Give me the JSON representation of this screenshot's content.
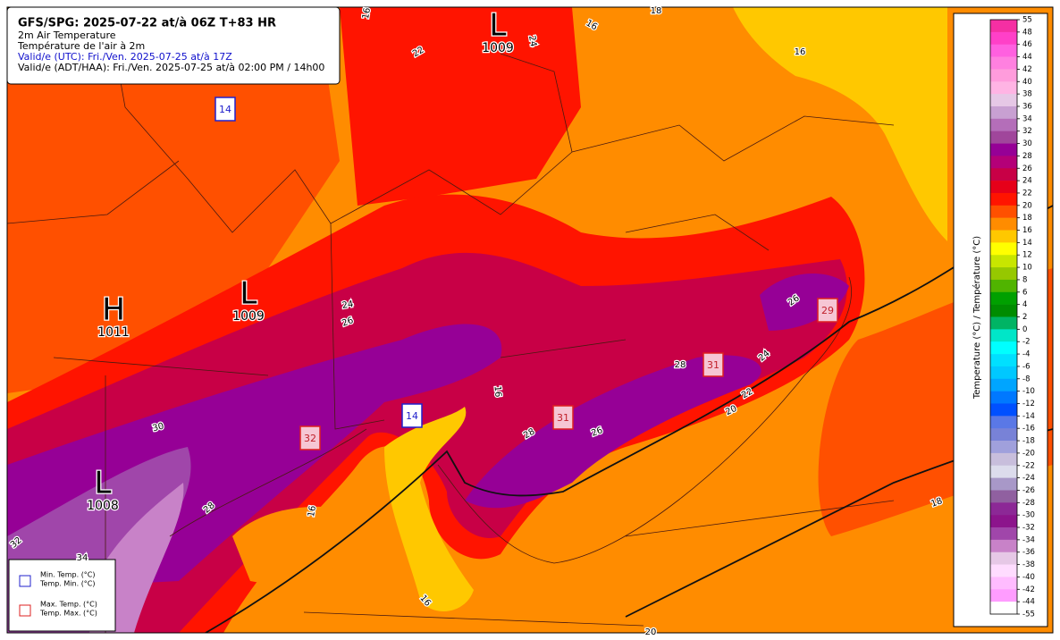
{
  "header": {
    "title": "GFS/SPG: 2025-07-22 at/à 06Z T+83 HR",
    "lines": [
      "2m Air Temperature",
      "Température de l'air à 2m",
      "Valid/e (UTC): Fri./Ven. 2025-07-25 at/à 17Z",
      "Valid/e (ADT/HAA): Fri./Ven. 2025-07-25 at/à 02:00 PM / 14h00"
    ]
  },
  "pressure_centers": [
    {
      "letter": "L",
      "value": 1009
    },
    {
      "letter": "L",
      "value": 1009
    },
    {
      "letter": "H",
      "value": 1011
    },
    {
      "letter": "L",
      "value": 1008
    }
  ],
  "min_temps": [
    14,
    14
  ],
  "max_temps": [
    32,
    31,
    31,
    29
  ],
  "contour_labels": [
    16,
    18,
    16,
    16,
    22,
    24,
    24,
    26,
    30,
    16,
    28,
    24,
    26,
    22,
    20,
    26,
    28,
    28,
    16,
    32,
    34,
    18,
    16,
    20
  ],
  "legend": {
    "min": [
      "Min. Temp. (°C)",
      "Temp. Min. (°C)"
    ],
    "max": [
      "Max. Temp. (°C)",
      "Temp. Max. (°C)"
    ]
  },
  "colorbar": {
    "label": "Temperature (°C) / Température (°C)",
    "ticks": [
      55,
      48,
      46,
      44,
      42,
      40,
      38,
      36,
      34,
      32,
      30,
      28,
      26,
      24,
      22,
      20,
      18,
      16,
      14,
      12,
      10,
      8,
      6,
      4,
      2,
      0,
      -2,
      -4,
      -6,
      -8,
      -10,
      -12,
      -14,
      -16,
      -18,
      -20,
      -22,
      -24,
      -26,
      -28,
      -30,
      -32,
      -34,
      -36,
      -38,
      -40,
      -42,
      -44,
      -55
    ],
    "colors": [
      "#f52fa3",
      "#ff40c8",
      "#ff60e0",
      "#ff80e0",
      "#ff9cdc",
      "#ffb4e4",
      "#e6c8e6",
      "#c8a0d2",
      "#b46eb9",
      "#a0469b",
      "#960096",
      "#b40078",
      "#c80046",
      "#e60019",
      "#ff1400",
      "#ff5000",
      "#ff8c00",
      "#ffc800",
      "#ffff00",
      "#c8e600",
      "#96c800",
      "#50b400",
      "#00a000",
      "#008c00",
      "#00b464",
      "#00e6c8",
      "#00ffff",
      "#00e0ff",
      "#00c8ff",
      "#00a5ff",
      "#0078ff",
      "#0050ff",
      "#5a78e6",
      "#7882d7",
      "#a0a0dc",
      "#c8bedc",
      "#dcdcec",
      "#a898c8",
      "#9060a0",
      "#8c2896",
      "#8c148c",
      "#a046aa",
      "#c882c8",
      "#e6c8e6",
      "#ffdcff",
      "#ffbcff",
      "#ff9cff",
      "#ffffff"
    ]
  }
}
